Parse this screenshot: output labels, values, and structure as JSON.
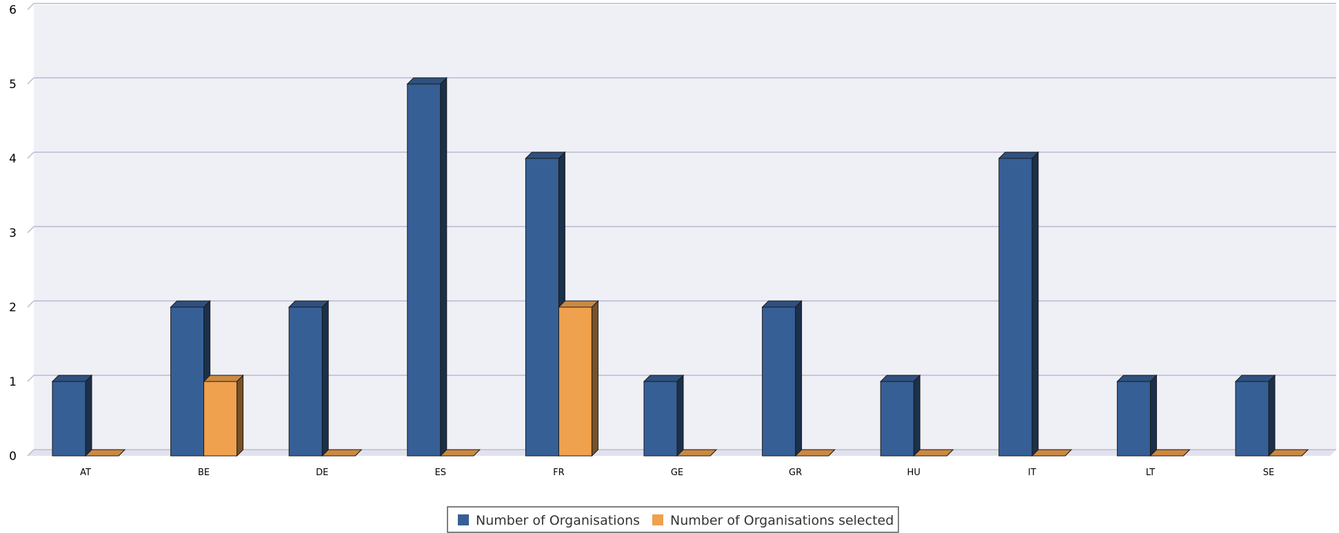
{
  "chart_data": {
    "type": "bar",
    "categories": [
      "AT",
      "BE",
      "DE",
      "ES",
      "FR",
      "GE",
      "GR",
      "HU",
      "IT",
      "LT",
      "SE"
    ],
    "series": [
      {
        "name": "Number of Organisations",
        "color": "#365f95",
        "values": [
          1,
          2,
          2,
          5,
          4,
          1,
          2,
          1,
          4,
          1,
          1
        ]
      },
      {
        "name": "Number of Organisations selected",
        "color": "#efa14e",
        "values": [
          0,
          1,
          0,
          0,
          2,
          0,
          0,
          0,
          0,
          0,
          0
        ]
      }
    ],
    "ylim": [
      0,
      6
    ],
    "yticks": [
      0,
      1,
      2,
      3,
      4,
      5,
      6
    ],
    "grid": true,
    "legend_position": "bottom",
    "plot_background": "#efeff6",
    "grid_color": "#b9b9d3",
    "three_d": true
  }
}
